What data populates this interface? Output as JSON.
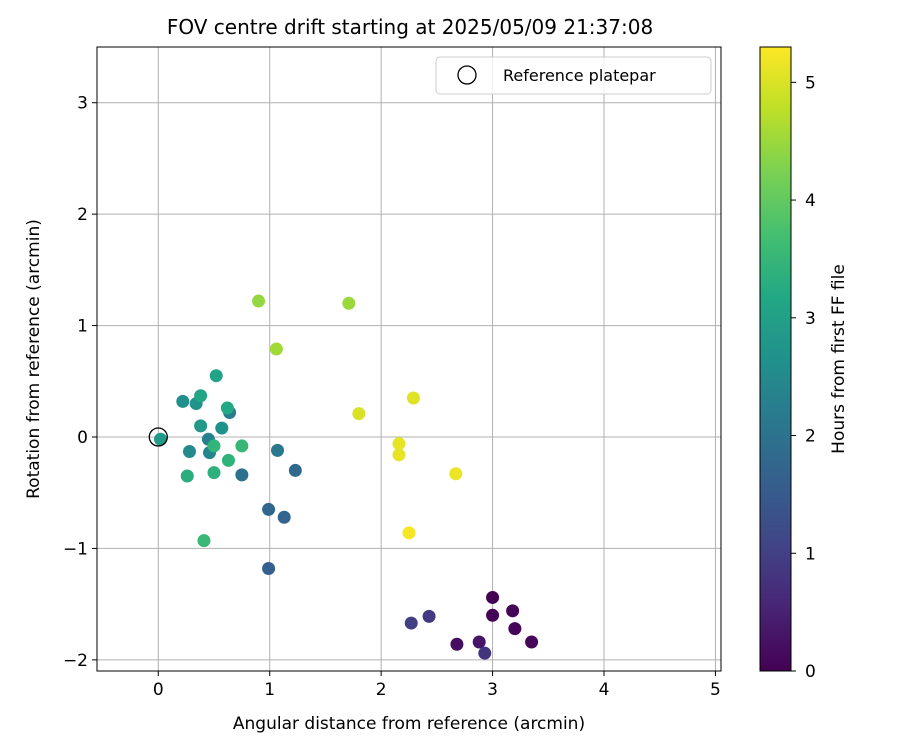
{
  "chart_data": {
    "type": "scatter",
    "title": "FOV centre drift starting at 2025/05/09 21:37:08",
    "xlabel": "Angular distance from reference (arcmin)",
    "ylabel": "Rotation from reference (arcmin)",
    "xlim": [
      -0.55,
      5.05
    ],
    "ylim": [
      -2.1,
      3.5
    ],
    "xticks": [
      0,
      1,
      2,
      3,
      4,
      5
    ],
    "yticks": [
      -2,
      -1,
      0,
      1,
      2,
      3
    ],
    "xtick_labels": [
      "0",
      "1",
      "2",
      "3",
      "4",
      "5"
    ],
    "ytick_labels": [
      "−2",
      "−1",
      "0",
      "1",
      "2",
      "3"
    ],
    "grid": true,
    "legend": {
      "placement": "top-right",
      "entries": [
        {
          "label": "Reference platepar",
          "marker": "open-circle",
          "x": 0,
          "y": 0
        }
      ]
    },
    "colorbar": {
      "label": "Hours from first FF file",
      "colormap": "viridis",
      "range": [
        0,
        5.3
      ],
      "ticks": [
        0,
        1,
        2,
        3,
        4,
        5
      ],
      "tick_labels": [
        "0",
        "1",
        "2",
        "3",
        "4",
        "5"
      ]
    },
    "points": [
      {
        "x": 3.0,
        "y": -1.44,
        "c": 0.0
      },
      {
        "x": 3.0,
        "y": -1.6,
        "c": 0.03
      },
      {
        "x": 3.18,
        "y": -1.56,
        "c": 0.05
      },
      {
        "x": 3.2,
        "y": -1.72,
        "c": 0.08
      },
      {
        "x": 3.35,
        "y": -1.84,
        "c": 0.1
      },
      {
        "x": 2.68,
        "y": -1.86,
        "c": 0.2
      },
      {
        "x": 2.88,
        "y": -1.84,
        "c": 0.3
      },
      {
        "x": 2.93,
        "y": -1.94,
        "c": 0.8
      },
      {
        "x": 2.43,
        "y": -1.61,
        "c": 0.9
      },
      {
        "x": 2.27,
        "y": -1.67,
        "c": 1.0
      },
      {
        "x": 0.99,
        "y": -1.18,
        "c": 1.6
      },
      {
        "x": 0.99,
        "y": -0.65,
        "c": 1.75
      },
      {
        "x": 1.13,
        "y": -0.72,
        "c": 1.7
      },
      {
        "x": 1.23,
        "y": -0.3,
        "c": 1.8
      },
      {
        "x": 0.75,
        "y": -0.34,
        "c": 1.95
      },
      {
        "x": 1.07,
        "y": -0.12,
        "c": 2.1
      },
      {
        "x": 0.64,
        "y": 0.22,
        "c": 2.2
      },
      {
        "x": 0.45,
        "y": -0.02,
        "c": 2.3
      },
      {
        "x": 0.46,
        "y": -0.14,
        "c": 2.4
      },
      {
        "x": 0.28,
        "y": -0.13,
        "c": 2.5
      },
      {
        "x": 0.22,
        "y": 0.32,
        "c": 2.6
      },
      {
        "x": 0.34,
        "y": 0.3,
        "c": 2.7
      },
      {
        "x": 0.57,
        "y": 0.08,
        "c": 2.65
      },
      {
        "x": 0.38,
        "y": 0.1,
        "c": 2.8
      },
      {
        "x": 0.02,
        "y": -0.02,
        "c": 2.85
      },
      {
        "x": 0.52,
        "y": 0.55,
        "c": 3.05
      },
      {
        "x": 0.38,
        "y": 0.37,
        "c": 3.1
      },
      {
        "x": 0.62,
        "y": 0.26,
        "c": 3.2
      },
      {
        "x": 0.26,
        "y": -0.35,
        "c": 3.3
      },
      {
        "x": 0.5,
        "y": -0.32,
        "c": 3.35
      },
      {
        "x": 0.5,
        "y": -0.08,
        "c": 3.45
      },
      {
        "x": 0.63,
        "y": -0.21,
        "c": 3.4
      },
      {
        "x": 0.75,
        "y": -0.08,
        "c": 3.5
      },
      {
        "x": 0.41,
        "y": -0.93,
        "c": 3.55
      },
      {
        "x": 0.9,
        "y": 1.22,
        "c": 4.45
      },
      {
        "x": 1.71,
        "y": 1.2,
        "c": 4.5
      },
      {
        "x": 1.06,
        "y": 0.79,
        "c": 4.55
      },
      {
        "x": 1.8,
        "y": 0.21,
        "c": 5.0
      },
      {
        "x": 2.29,
        "y": 0.35,
        "c": 5.05
      },
      {
        "x": 2.16,
        "y": -0.06,
        "c": 5.1
      },
      {
        "x": 2.16,
        "y": -0.16,
        "c": 5.12
      },
      {
        "x": 2.67,
        "y": -0.33,
        "c": 5.15
      },
      {
        "x": 2.25,
        "y": -0.86,
        "c": 5.25
      }
    ]
  }
}
